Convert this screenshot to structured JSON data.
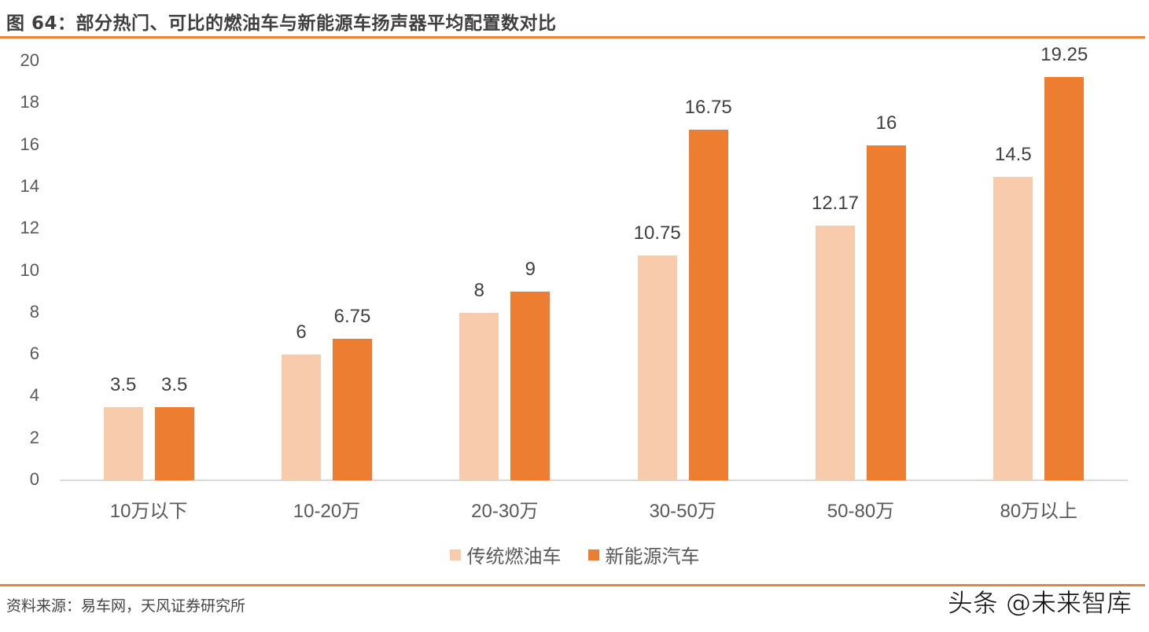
{
  "header": {
    "title": "图 64：部分热门、可比的燃油车与新能源车扬声器平均配置数对比"
  },
  "footer": {
    "source": "资料来源：易车网，天风证券研究所",
    "watermark": "头条 @未来智库"
  },
  "colors": {
    "series_0": "#F8CBAD",
    "series_1": "#ED7D31",
    "accent_rule": "#E8843A",
    "axis": "#D9D9D9"
  },
  "chart_data": {
    "type": "bar",
    "title": "图 64：部分热门、可比的燃油车与新能源车扬声器平均配置数对比",
    "xlabel": "",
    "ylabel": "",
    "ylim": [
      0,
      20
    ],
    "yticks": [
      0,
      2,
      4,
      6,
      8,
      10,
      12,
      14,
      16,
      18,
      20
    ],
    "grid": false,
    "legend_position": "bottom",
    "categories": [
      "10万以下",
      "10-20万",
      "20-30万",
      "30-50万",
      "50-80万",
      "80万以上"
    ],
    "series": [
      {
        "name": "传统燃油车",
        "color": "#F8CBAD",
        "values": [
          3.5,
          6,
          8,
          10.75,
          12.17,
          14.5
        ],
        "labels": [
          "3.5",
          "6",
          "8",
          "10.75",
          "12.17",
          "14.5"
        ]
      },
      {
        "name": "新能源汽车",
        "color": "#ED7D31",
        "values": [
          3.5,
          6.75,
          9,
          16.75,
          16,
          19.25
        ],
        "labels": [
          "3.5",
          "6.75",
          "9",
          "16.75",
          "16",
          "19.25"
        ]
      }
    ]
  }
}
